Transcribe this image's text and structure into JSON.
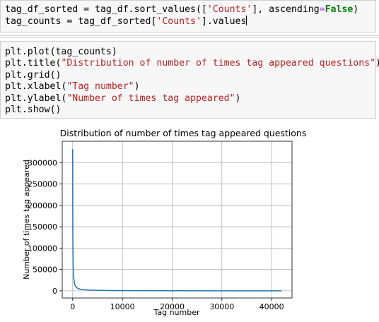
{
  "cell1": {
    "line1": {
      "a": "tag_df_sorted = tag_df.sort_values([",
      "s": "'Counts'",
      "b": "], ascending",
      "op": "=",
      "kw": "False",
      "c": ")"
    },
    "line2": {
      "a": "tag_counts = tag_df_sorted[",
      "s": "'Counts'",
      "b": "].values"
    }
  },
  "cell2": {
    "l1": {
      "a": "plt.plot(tag_counts)"
    },
    "l2": {
      "a": "plt.title(",
      "s": "\"Distribution of number of times tag appeared questions\"",
      "b": ")"
    },
    "l3": {
      "a": "plt.grid()"
    },
    "l4": {
      "a": "plt.xlabel(",
      "s": "\"Tag number\"",
      "b": ")"
    },
    "l5": {
      "a": "plt.ylabel(",
      "s": "\"Number of times tag appeared\"",
      "b": ")"
    },
    "l6": {
      "a": "plt.show()"
    }
  },
  "chart_data": {
    "type": "line",
    "title": "Distribution of number of times tag appeared questions",
    "xlabel": "Tag number",
    "ylabel": "Number of times tag appeared",
    "xlim": [
      -2100,
      44100
    ],
    "ylim": [
      -16700,
      350000
    ],
    "xticks": [
      0,
      10000,
      20000,
      30000,
      40000
    ],
    "yticks": [
      0,
      50000,
      100000,
      150000,
      200000,
      250000,
      300000
    ],
    "grid": true,
    "line_color": "#1f77b4",
    "series": [
      {
        "x": [
          0,
          30,
          60,
          100,
          150,
          200,
          300,
          400,
          500,
          700,
          1000,
          1500,
          2000,
          3000,
          5000,
          8000,
          12000,
          20000,
          30000,
          42000
        ],
        "y": [
          331505,
          150000,
          90000,
          62000,
          45000,
          34000,
          22000,
          16000,
          12500,
          8500,
          6000,
          4000,
          3000,
          2000,
          1200,
          700,
          400,
          150,
          60,
          1
        ]
      }
    ]
  }
}
